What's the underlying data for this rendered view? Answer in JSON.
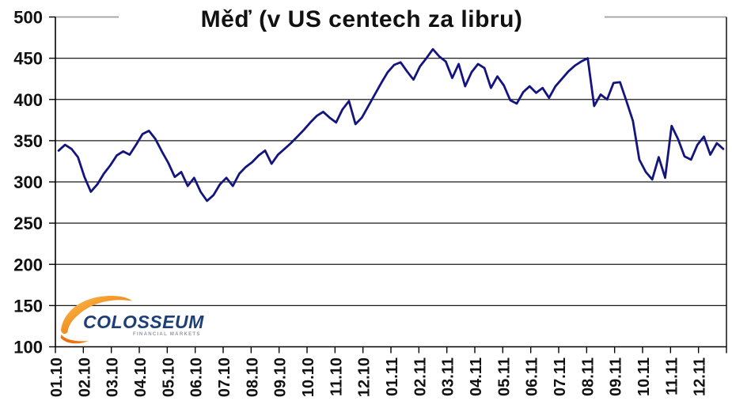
{
  "chart_data": {
    "type": "line",
    "title": "Měď (v US centech za libru)",
    "xlabel": "",
    "ylabel": "",
    "ylim": [
      100,
      500
    ],
    "y_ticks": [
      500,
      450,
      400,
      350,
      300,
      250,
      200,
      150,
      100
    ],
    "x_tick_labels": [
      "01.10",
      "02.10",
      "03.10",
      "04.10",
      "05.10",
      "06.10",
      "07.10",
      "08.10",
      "09.10",
      "10.10",
      "11.10",
      "12.10",
      "01.11",
      "02.11",
      "03.11",
      "04.11",
      "05.11",
      "06.11",
      "07.11",
      "08.11",
      "09.11",
      "10.11",
      "11.11",
      "12.11"
    ],
    "x_range_months": 24,
    "x_note": "104 evenly spaced weekly values, Jan 2010 - Dec 2011",
    "grid": "horizontal",
    "legend": "none",
    "colors": {
      "line": "#14147e",
      "gridline": "#1c1c1c",
      "axis": "#000000",
      "top_border": "#9e9e9e",
      "label": "#111111"
    },
    "series": [
      {
        "name": "Měď",
        "unit": "US centy za libru",
        "values": [
          338,
          345,
          340,
          330,
          306,
          288,
          297,
          310,
          320,
          332,
          337,
          333,
          345,
          358,
          362,
          352,
          337,
          323,
          306,
          312,
          295,
          305,
          288,
          277,
          284,
          297,
          305,
          295,
          310,
          318,
          324,
          332,
          338,
          322,
          333,
          340,
          347,
          355,
          363,
          372,
          380,
          385,
          378,
          372,
          388,
          398,
          370,
          378,
          392,
          406,
          420,
          433,
          442,
          445,
          434,
          424,
          440,
          450,
          461,
          452,
          446,
          426,
          443,
          416,
          433,
          443,
          438,
          414,
          428,
          417,
          399,
          395,
          409,
          416,
          408,
          414,
          402,
          416,
          425,
          434,
          441,
          446,
          450,
          392,
          406,
          400,
          420,
          421,
          398,
          374,
          327,
          312,
          303,
          330,
          305,
          368,
          352,
          331,
          327,
          345,
          355,
          333,
          347,
          340
        ]
      }
    ]
  },
  "logo": {
    "brand": "COLOSSEUM",
    "tagline": "FINANCIAL MARKETS",
    "brand_color": "#1d3f77",
    "tagline_color": "#9097a8",
    "swoosh_color_light": "#fdc253",
    "swoosh_color_dark": "#e35d07"
  }
}
